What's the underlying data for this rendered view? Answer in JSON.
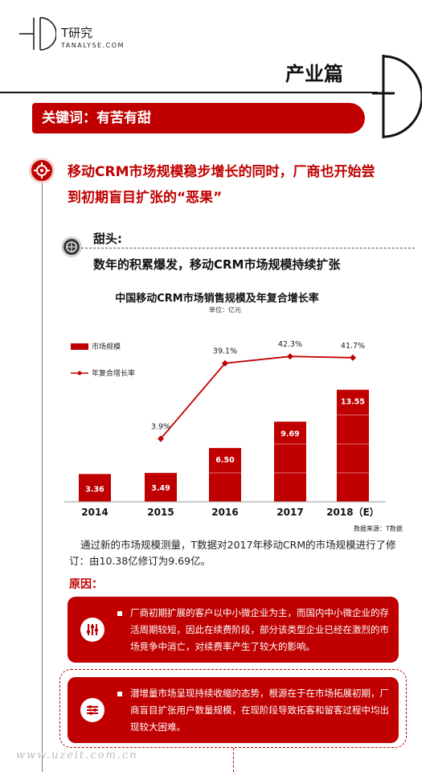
{
  "logo": {
    "cn": "T研究",
    "en": "TANALYSE.COM",
    "tm": "TM"
  },
  "section_title": "产业篇",
  "keyword": "关键词：有苦有甜",
  "headline_line1": "移动CRM市场规模稳步增长的同时，厂商也开始尝",
  "headline_line2": "到初期盲目扩张的“恶果”",
  "sweet": {
    "label": "甜头:",
    "subtitle": "数年的积累爆发，移动CRM市场规模持续扩张"
  },
  "chart_data": {
    "type": "bar",
    "title": "中国移动CRM市场销售规模及年复合增长率",
    "unit": "单位：亿元",
    "categories": [
      "2014",
      "2015",
      "2016",
      "2017",
      "2018（E）"
    ],
    "series": [
      {
        "name": "市场规模",
        "type": "bar",
        "values": [
          3.36,
          3.49,
          6.5,
          9.69,
          13.55
        ],
        "labels": [
          "3.36",
          "3.49",
          "6.50",
          "9.69",
          "13.55"
        ]
      },
      {
        "name": "年复合增长率",
        "type": "line",
        "values": [
          null,
          3.9,
          39.1,
          42.3,
          41.7
        ],
        "labels": [
          "",
          "3.9%",
          "39.1%",
          "42.3%",
          "41.7%"
        ]
      }
    ],
    "color": "#c00000",
    "source": "数据来源：T数据"
  },
  "body_text": "通过新的市场规模测量，T数据对2017年移动CRM的市场规模进行了修订：由10.38亿修订为9.69亿。",
  "reason_label": "原因：",
  "reasons": [
    {
      "text": "厂商初期扩展的客户以中小微企业为主，而国内中小微企业的存活周期较短，因此在续费阶段，部分该类型企业已经在激烈的市场竞争中消亡，对续费率产生了较大的影响。",
      "icon": "equalizer-icon"
    },
    {
      "text": "潜增量市场呈现持续收缩的态势，根源在于在市场拓展初期，厂商盲目扩张用户数量规模，在现阶段导致拓客和留客过程中均出现较大困难。",
      "icon": "sliders-icon"
    }
  ],
  "watermark": "www.uzeit.com.cn",
  "accent": "#c00000"
}
